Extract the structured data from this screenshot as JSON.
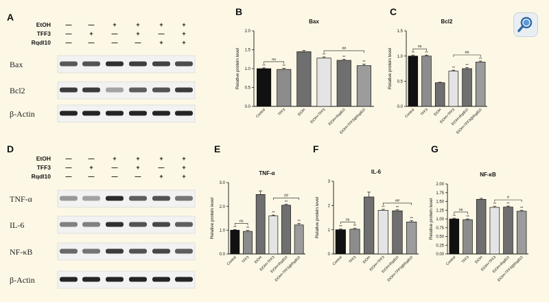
{
  "figure": {
    "panel_letters": [
      "A",
      "B",
      "C",
      "D",
      "E",
      "F",
      "G"
    ],
    "treatment_rows_a": [
      "EtOH",
      "TFF3",
      "Rqdl10"
    ],
    "treatment_rows_d": [
      "EtOH",
      "TFF3",
      "Rqdl10"
    ],
    "treatment_signs": [
      [
        "—",
        "—",
        "+",
        "+",
        "+",
        "+"
      ],
      [
        "—",
        "+",
        "—",
        "+",
        "—",
        "+"
      ],
      [
        "—",
        "—",
        "—",
        "—",
        "+",
        "+"
      ]
    ],
    "blot_labels_a": [
      "Bax",
      "Bcl2",
      "β-Actin"
    ],
    "blot_labels_d": [
      "TNF-α",
      "IL-6",
      "NF-κB",
      "β-Actin"
    ],
    "blot_intensity_a": [
      [
        0.72,
        0.75,
        0.9,
        0.84,
        0.82,
        0.78
      ],
      [
        0.85,
        0.85,
        0.4,
        0.7,
        0.75,
        0.85
      ],
      [
        0.95,
        0.95,
        0.95,
        0.95,
        0.95,
        0.95
      ]
    ],
    "blot_intensity_d": [
      [
        0.45,
        0.4,
        0.92,
        0.7,
        0.75,
        0.6
      ],
      [
        0.55,
        0.55,
        0.9,
        0.75,
        0.8,
        0.7
      ],
      [
        0.65,
        0.6,
        0.85,
        0.75,
        0.8,
        0.7
      ],
      [
        0.95,
        0.95,
        0.95,
        0.95,
        0.95,
        0.95
      ]
    ],
    "magnifier_icon": "magnifier-icon"
  },
  "chart_data": [
    {
      "id": "B",
      "type": "bar",
      "title": "Bax",
      "ylabel": "Relative protein level",
      "categories": [
        "Control",
        "TFF3",
        "EtOH",
        "EtOH+TFF3",
        "EtOH+Rqdl10",
        "EtOH+TFF3@Rqdl10"
      ],
      "values": [
        1.0,
        0.98,
        1.45,
        1.28,
        1.22,
        1.08
      ],
      "errors": [
        0.02,
        0.03,
        0.03,
        0.03,
        0.03,
        0.04
      ],
      "ylim": [
        0,
        2.0
      ],
      "yticks": [
        "0.0",
        "0.5",
        "1.0",
        "1.5",
        "2.0"
      ],
      "bar_labels": [
        "**",
        "**",
        "",
        "**",
        "**",
        "**"
      ],
      "brackets": [
        {
          "from": 0,
          "to": 1,
          "label": "ns"
        },
        {
          "from": 3,
          "to": 5,
          "label": "##"
        }
      ],
      "colors": [
        "#111111",
        "#8c8c8c",
        "#6f6f6f",
        "#e4e4e4",
        "#6f6f6f",
        "#9c9c9c"
      ]
    },
    {
      "id": "C",
      "type": "bar",
      "title": "Bcl2",
      "ylabel": "Relative protein level",
      "categories": [
        "Control",
        "TFF3",
        "EtOH",
        "EtOH+TFF3",
        "EtOH+Rqdl10",
        "EtOH+TFF3@Rqdl10"
      ],
      "values": [
        1.0,
        1.0,
        0.47,
        0.7,
        0.75,
        0.88
      ],
      "errors": [
        0.02,
        0.02,
        0.01,
        0.02,
        0.02,
        0.02
      ],
      "ylim": [
        0,
        1.5
      ],
      "yticks": [
        "0.0",
        "0.5",
        "1.0",
        "1.5"
      ],
      "bar_labels": [
        "**",
        "**",
        "",
        "**",
        "**",
        "**"
      ],
      "brackets": [
        {
          "from": 0,
          "to": 1,
          "label": "ns"
        },
        {
          "from": 3,
          "to": 5,
          "label": "##"
        }
      ],
      "colors": [
        "#111111",
        "#8c8c8c",
        "#6f6f6f",
        "#e4e4e4",
        "#6f6f6f",
        "#9c9c9c"
      ]
    },
    {
      "id": "E",
      "type": "bar",
      "title": "TNF-α",
      "ylabel": "Relative protein level",
      "categories": [
        "Control",
        "TFF3",
        "EtOH",
        "EtOH+TFF3",
        "EtOH+Rqdl10",
        "EtOH+TFF3@Rqdl10"
      ],
      "values": [
        1.0,
        0.95,
        2.5,
        1.6,
        2.05,
        1.22
      ],
      "errors": [
        0.03,
        0.04,
        0.15,
        0.04,
        0.04,
        0.06
      ],
      "ylim": [
        0,
        3
      ],
      "yticks": [
        "0.0",
        "1.0",
        "2.0",
        "3.0"
      ],
      "bar_labels": [
        "**",
        "**",
        "",
        "**",
        "**",
        "**"
      ],
      "brackets": [
        {
          "from": 0,
          "to": 1,
          "label": "ns"
        },
        {
          "from": 3,
          "to": 5,
          "label": "##"
        }
      ],
      "colors": [
        "#111111",
        "#8c8c8c",
        "#6f6f6f",
        "#e4e4e4",
        "#6f6f6f",
        "#9c9c9c"
      ]
    },
    {
      "id": "F",
      "type": "bar",
      "title": "IL-6",
      "ylabel": "Relative protein level",
      "categories": [
        "Control",
        "TFF3",
        "EtOH",
        "EtOH+TFF3",
        "EtOH+Rqdl10",
        "EtOH+TFF3@Rqdl10"
      ],
      "values": [
        1.0,
        1.02,
        2.35,
        1.8,
        1.78,
        1.32
      ],
      "errors": [
        0.03,
        0.04,
        0.2,
        0.04,
        0.04,
        0.05
      ],
      "ylim": [
        0,
        3
      ],
      "yticks": [
        "0",
        "1",
        "2",
        "3"
      ],
      "bar_labels": [
        "**",
        "**",
        "",
        "**",
        "**",
        "**"
      ],
      "brackets": [
        {
          "from": 0,
          "to": 1,
          "label": "ns"
        },
        {
          "from": 3,
          "to": 5,
          "label": "##"
        }
      ],
      "colors": [
        "#111111",
        "#8c8c8c",
        "#6f6f6f",
        "#e4e4e4",
        "#6f6f6f",
        "#9c9c9c"
      ]
    },
    {
      "id": "G",
      "type": "bar",
      "title": "NF-κB",
      "ylabel": "Relative protein level",
      "categories": [
        "Control",
        "TFF3",
        "EtOH",
        "EtOH+TFF3",
        "EtOH+Rqdl10",
        "EtOH+TFF3@Rqdl10"
      ],
      "values": [
        1.0,
        0.98,
        1.56,
        1.33,
        1.34,
        1.22
      ],
      "errors": [
        0.02,
        0.02,
        0.03,
        0.03,
        0.03,
        0.03
      ],
      "ylim": [
        0,
        2.0
      ],
      "yticks": [
        "0.00",
        "0.25",
        "0.50",
        "0.75",
        "1.00",
        "1.25",
        "1.50",
        "1.75",
        "2.00"
      ],
      "bar_labels": [
        "**",
        "**",
        "",
        "**",
        "**",
        "**"
      ],
      "brackets": [
        {
          "from": 0,
          "to": 1,
          "label": "ns"
        },
        {
          "from": 3,
          "to": 5,
          "label": "#"
        }
      ],
      "colors": [
        "#111111",
        "#8c8c8c",
        "#6f6f6f",
        "#e4e4e4",
        "#6f6f6f",
        "#9c9c9c"
      ]
    }
  ]
}
